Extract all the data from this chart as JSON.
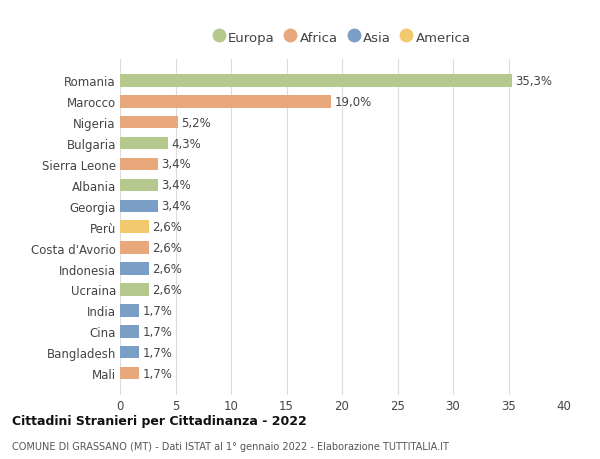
{
  "countries": [
    "Romania",
    "Marocco",
    "Nigeria",
    "Bulgaria",
    "Sierra Leone",
    "Albania",
    "Georgia",
    "Perù",
    "Costa d'Avorio",
    "Indonesia",
    "Ucraina",
    "India",
    "Cina",
    "Bangladesh",
    "Mali"
  ],
  "values": [
    35.3,
    19.0,
    5.2,
    4.3,
    3.4,
    3.4,
    3.4,
    2.6,
    2.6,
    2.6,
    2.6,
    1.7,
    1.7,
    1.7,
    1.7
  ],
  "labels": [
    "35,3%",
    "19,0%",
    "5,2%",
    "4,3%",
    "3,4%",
    "3,4%",
    "3,4%",
    "2,6%",
    "2,6%",
    "2,6%",
    "2,6%",
    "1,7%",
    "1,7%",
    "1,7%",
    "1,7%"
  ],
  "continents": [
    "Europa",
    "Africa",
    "Africa",
    "Europa",
    "Africa",
    "Europa",
    "Asia",
    "America",
    "Africa",
    "Asia",
    "Europa",
    "Asia",
    "Asia",
    "Asia",
    "Africa"
  ],
  "continent_colors": {
    "Europa": "#b5c98e",
    "Africa": "#e8a87c",
    "Asia": "#7b9ec7",
    "America": "#f2c96e"
  },
  "legend_order": [
    "Europa",
    "Africa",
    "Asia",
    "America"
  ],
  "title1": "Cittadini Stranieri per Cittadinanza - 2022",
  "title2": "COMUNE DI GRASSANO (MT) - Dati ISTAT al 1° gennaio 2022 - Elaborazione TUTTITALIA.IT",
  "xlim": [
    0,
    40
  ],
  "xticks": [
    0,
    5,
    10,
    15,
    20,
    25,
    30,
    35,
    40
  ],
  "bg_color": "#ffffff",
  "grid_color": "#dddddd",
  "bar_height": 0.6,
  "label_fontsize": 8.5,
  "tick_fontsize": 8.5,
  "legend_fontsize": 9.5
}
